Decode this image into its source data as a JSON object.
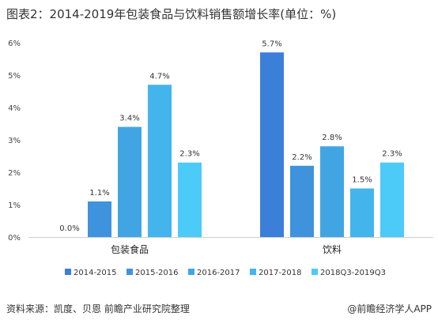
{
  "title": "图表2：2014-2019年包装食品与饮料销售额增长率(单位：%)",
  "footer": {
    "source": "资料来源：凯度、贝恩 前瞻产业研究院整理",
    "brand": "@前瞻经济学人APP"
  },
  "chart_data": {
    "type": "bar",
    "categories": [
      "包装食品",
      "饮料"
    ],
    "series": [
      {
        "name": "2014-2015",
        "values": [
          0.0,
          5.7
        ],
        "labels": [
          "0.0%",
          "5.7%"
        ],
        "color": "#3b7fd9"
      },
      {
        "name": "2015-2016",
        "values": [
          1.1,
          2.2
        ],
        "labels": [
          "1.1%",
          "2.2%"
        ],
        "color": "#3e93dc"
      },
      {
        "name": "2016-2017",
        "values": [
          3.4,
          2.8
        ],
        "labels": [
          "3.4%",
          "2.8%"
        ],
        "color": "#41a5e3"
      },
      {
        "name": "2017-2018",
        "values": [
          4.7,
          1.5
        ],
        "labels": [
          "4.7%",
          "1.5%"
        ],
        "color": "#43b4ec"
      },
      {
        "name": "2018Q3-2019Q3",
        "values": [
          2.3,
          2.3
        ],
        "labels": [
          "2.3%",
          "2.3%"
        ],
        "color": "#4ccaf8"
      }
    ],
    "yticks": [
      "0%",
      "1%",
      "2%",
      "3%",
      "4%",
      "5%",
      "6%"
    ],
    "ylim": [
      0,
      6
    ],
    "grid": false,
    "legend": "bottom"
  }
}
